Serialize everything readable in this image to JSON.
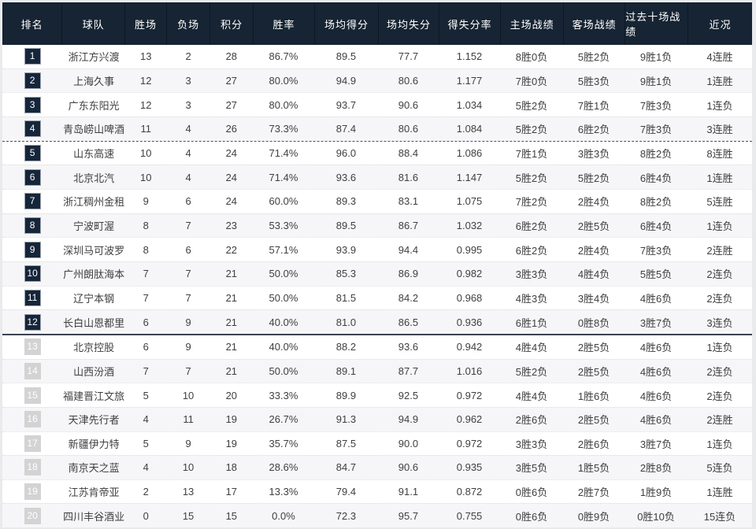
{
  "colors": {
    "header_bg": "#162433",
    "badge_navy": "#16263a",
    "badge_gray": "#d3d3d3",
    "row_alt_bg": "#f6f6f8",
    "text": "#3f3f3f"
  },
  "table": {
    "headers": [
      "排名",
      "球队",
      "胜场",
      "负场",
      "积分",
      "胜率",
      "场均得分",
      "场均失分",
      "得失分率",
      "主场战绩",
      "客场战绩",
      "过去十场战绩",
      "近况"
    ],
    "zones": {
      "navy_badge_max_rank": 12,
      "dashed_separator_after_rank": 4,
      "solid_separator_after_rank": 12
    },
    "rows": [
      {
        "rank": "1",
        "team": "浙江方兴渡",
        "wins": "13",
        "losses": "2",
        "points": "28",
        "win_pct": "86.7%",
        "avg_for": "89.5",
        "avg_against": "77.7",
        "ratio": "1.152",
        "home": "8胜0负",
        "away": "5胜2负",
        "last10": "9胜1负",
        "streak": "4连胜"
      },
      {
        "rank": "2",
        "team": "上海久事",
        "wins": "12",
        "losses": "3",
        "points": "27",
        "win_pct": "80.0%",
        "avg_for": "94.9",
        "avg_against": "80.6",
        "ratio": "1.177",
        "home": "7胜0负",
        "away": "5胜3负",
        "last10": "9胜1负",
        "streak": "1连胜"
      },
      {
        "rank": "3",
        "team": "广东东阳光",
        "wins": "12",
        "losses": "3",
        "points": "27",
        "win_pct": "80.0%",
        "avg_for": "93.7",
        "avg_against": "90.6",
        "ratio": "1.034",
        "home": "5胜2负",
        "away": "7胜1负",
        "last10": "7胜3负",
        "streak": "1连负"
      },
      {
        "rank": "4",
        "team": "青岛崂山啤酒",
        "wins": "11",
        "losses": "4",
        "points": "26",
        "win_pct": "73.3%",
        "avg_for": "87.4",
        "avg_against": "80.6",
        "ratio": "1.084",
        "home": "5胜2负",
        "away": "6胜2负",
        "last10": "7胜3负",
        "streak": "3连胜"
      },
      {
        "rank": "5",
        "team": "山东高速",
        "wins": "10",
        "losses": "4",
        "points": "24",
        "win_pct": "71.4%",
        "avg_for": "96.0",
        "avg_against": "88.4",
        "ratio": "1.086",
        "home": "7胜1负",
        "away": "3胜3负",
        "last10": "8胜2负",
        "streak": "8连胜"
      },
      {
        "rank": "6",
        "team": "北京北汽",
        "wins": "10",
        "losses": "4",
        "points": "24",
        "win_pct": "71.4%",
        "avg_for": "93.6",
        "avg_against": "81.6",
        "ratio": "1.147",
        "home": "5胜2负",
        "away": "5胜2负",
        "last10": "6胜4负",
        "streak": "1连胜"
      },
      {
        "rank": "7",
        "team": "浙江稠州金租",
        "wins": "9",
        "losses": "6",
        "points": "24",
        "win_pct": "60.0%",
        "avg_for": "89.3",
        "avg_against": "83.1",
        "ratio": "1.075",
        "home": "7胜2负",
        "away": "2胜4负",
        "last10": "8胜2负",
        "streak": "5连胜"
      },
      {
        "rank": "8",
        "team": "宁波町渥",
        "wins": "8",
        "losses": "7",
        "points": "23",
        "win_pct": "53.3%",
        "avg_for": "89.5",
        "avg_against": "86.7",
        "ratio": "1.032",
        "home": "6胜2负",
        "away": "2胜5负",
        "last10": "6胜4负",
        "streak": "1连负"
      },
      {
        "rank": "9",
        "team": "深圳马可波罗",
        "wins": "8",
        "losses": "6",
        "points": "22",
        "win_pct": "57.1%",
        "avg_for": "93.9",
        "avg_against": "94.4",
        "ratio": "0.995",
        "home": "6胜2负",
        "away": "2胜4负",
        "last10": "7胜3负",
        "streak": "2连胜"
      },
      {
        "rank": "10",
        "team": "广州朗肽海本",
        "wins": "7",
        "losses": "7",
        "points": "21",
        "win_pct": "50.0%",
        "avg_for": "85.3",
        "avg_against": "86.9",
        "ratio": "0.982",
        "home": "3胜3负",
        "away": "4胜4负",
        "last10": "5胜5负",
        "streak": "2连负"
      },
      {
        "rank": "11",
        "team": "辽宁本钢",
        "wins": "7",
        "losses": "7",
        "points": "21",
        "win_pct": "50.0%",
        "avg_for": "81.5",
        "avg_against": "84.2",
        "ratio": "0.968",
        "home": "4胜3负",
        "away": "3胜4负",
        "last10": "4胜6负",
        "streak": "2连负"
      },
      {
        "rank": "12",
        "team": "长白山恩都里",
        "wins": "6",
        "losses": "9",
        "points": "21",
        "win_pct": "40.0%",
        "avg_for": "81.0",
        "avg_against": "86.5",
        "ratio": "0.936",
        "home": "6胜1负",
        "away": "0胜8负",
        "last10": "3胜7负",
        "streak": "3连负"
      },
      {
        "rank": "13",
        "team": "北京控股",
        "wins": "6",
        "losses": "9",
        "points": "21",
        "win_pct": "40.0%",
        "avg_for": "88.2",
        "avg_against": "93.6",
        "ratio": "0.942",
        "home": "4胜4负",
        "away": "2胜5负",
        "last10": "4胜6负",
        "streak": "1连负"
      },
      {
        "rank": "14",
        "team": "山西汾酒",
        "wins": "7",
        "losses": "7",
        "points": "21",
        "win_pct": "50.0%",
        "avg_for": "89.1",
        "avg_against": "87.7",
        "ratio": "1.016",
        "home": "5胜2负",
        "away": "2胜5负",
        "last10": "4胜6负",
        "streak": "2连负"
      },
      {
        "rank": "15",
        "team": "福建晋江文旅",
        "wins": "5",
        "losses": "10",
        "points": "20",
        "win_pct": "33.3%",
        "avg_for": "89.9",
        "avg_against": "92.5",
        "ratio": "0.972",
        "home": "4胜4负",
        "away": "1胜6负",
        "last10": "4胜6负",
        "streak": "2连负"
      },
      {
        "rank": "16",
        "team": "天津先行者",
        "wins": "4",
        "losses": "11",
        "points": "19",
        "win_pct": "26.7%",
        "avg_for": "91.3",
        "avg_against": "94.9",
        "ratio": "0.962",
        "home": "2胜6负",
        "away": "2胜5负",
        "last10": "4胜6负",
        "streak": "2连胜"
      },
      {
        "rank": "17",
        "team": "新疆伊力特",
        "wins": "5",
        "losses": "9",
        "points": "19",
        "win_pct": "35.7%",
        "avg_for": "87.5",
        "avg_against": "90.0",
        "ratio": "0.972",
        "home": "3胜3负",
        "away": "2胜6负",
        "last10": "3胜7负",
        "streak": "1连负"
      },
      {
        "rank": "18",
        "team": "南京天之蓝",
        "wins": "4",
        "losses": "10",
        "points": "18",
        "win_pct": "28.6%",
        "avg_for": "84.7",
        "avg_against": "90.6",
        "ratio": "0.935",
        "home": "3胜5负",
        "away": "1胜5负",
        "last10": "2胜8负",
        "streak": "5连负"
      },
      {
        "rank": "19",
        "team": "江苏肯帝亚",
        "wins": "2",
        "losses": "13",
        "points": "17",
        "win_pct": "13.3%",
        "avg_for": "79.4",
        "avg_against": "91.1",
        "ratio": "0.872",
        "home": "0胜6负",
        "away": "2胜7负",
        "last10": "1胜9负",
        "streak": "1连胜"
      },
      {
        "rank": "20",
        "team": "四川丰谷酒业",
        "wins": "0",
        "losses": "15",
        "points": "15",
        "win_pct": "0.0%",
        "avg_for": "72.3",
        "avg_against": "95.7",
        "ratio": "0.755",
        "home": "0胜6负",
        "away": "0胜9负",
        "last10": "0胜10负",
        "streak": "15连负"
      }
    ]
  }
}
